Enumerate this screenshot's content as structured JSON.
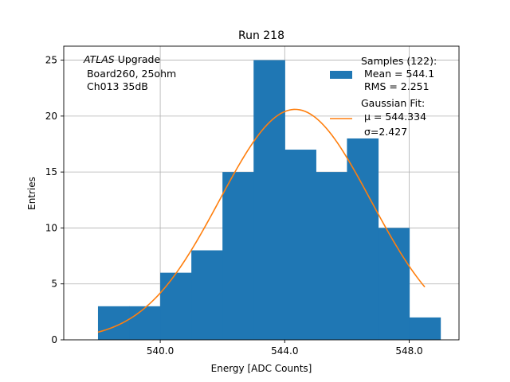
{
  "chart_data": {
    "type": "bar",
    "title": "Run 218",
    "xlabel": "Energy [ADC Counts]",
    "ylabel": "Entries",
    "xlim": [
      536.9,
      549.6
    ],
    "ylim": [
      0,
      26.25
    ],
    "grid": true,
    "x_ticks": [
      540.0,
      544.0,
      548.0
    ],
    "x_tick_labels": [
      "540.0",
      "544.0",
      "548.0"
    ],
    "y_ticks": [
      0,
      5,
      10,
      15,
      20,
      25
    ],
    "y_tick_labels": [
      "0",
      "5",
      "10",
      "15",
      "20",
      "25"
    ],
    "histogram": {
      "name": "Samples (122)",
      "color": "#1f77b4",
      "bins": [
        {
          "low": 538,
          "high": 539,
          "count": 3
        },
        {
          "low": 539,
          "high": 540,
          "count": 3
        },
        {
          "low": 540,
          "high": 541,
          "count": 6
        },
        {
          "low": 541,
          "high": 542,
          "count": 8
        },
        {
          "low": 542,
          "high": 543,
          "count": 15
        },
        {
          "low": 543,
          "high": 544,
          "count": 25
        },
        {
          "low": 544,
          "high": 545,
          "count": 17
        },
        {
          "low": 545,
          "high": 546,
          "count": 15
        },
        {
          "low": 546,
          "high": 547,
          "count": 18
        },
        {
          "low": 547,
          "high": 548,
          "count": 10
        },
        {
          "low": 548,
          "high": 549,
          "count": 2
        }
      ]
    },
    "fit": {
      "name": "Gaussian Fit",
      "color": "#ff7f0e",
      "mu": 544.334,
      "sigma": 2.427,
      "amplitude": 20.6,
      "x_range": [
        538,
        548.5
      ]
    },
    "legend": {
      "position": "top-right",
      "hist_lines": [
        "Samples (122):",
        " Mean = 544.1",
        " RMS = 2.251"
      ],
      "fit_lines": [
        "Gaussian Fit:",
        " μ = 544.334",
        " σ=2.427"
      ]
    },
    "annotation": {
      "position": "top-left",
      "italic": "ATLAS",
      "line1_rest": " Upgrade",
      "line2": " Board260, 25ohm",
      "line3": " Ch013 35dB"
    }
  }
}
